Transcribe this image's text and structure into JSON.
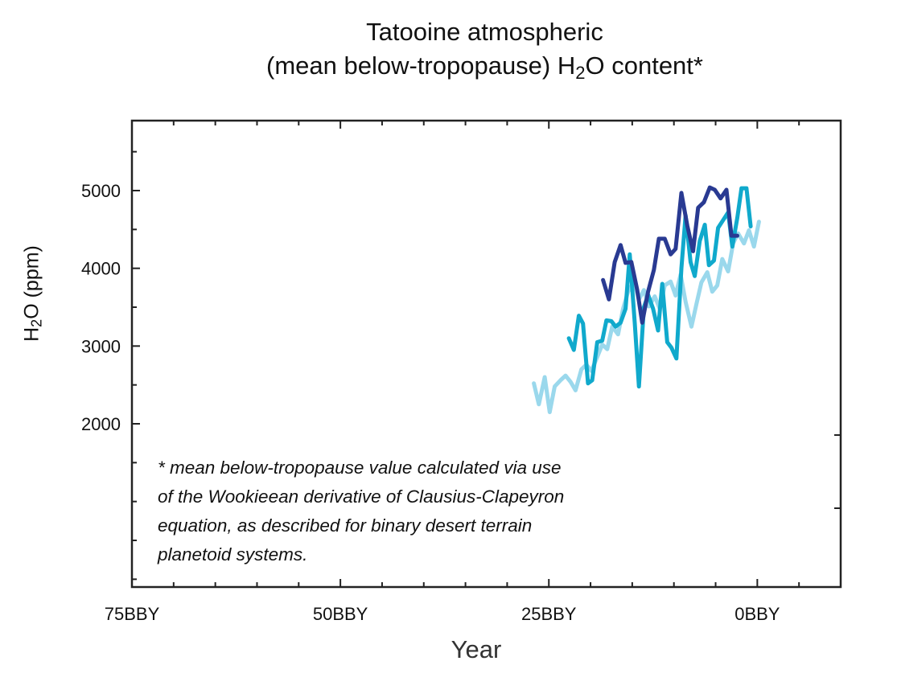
{
  "chart_data": {
    "type": "line",
    "title": {
      "line1": "Tatooine atmospheric",
      "line2_before": "(mean below-tropopause) H",
      "line2_sub": "2",
      "line2_after": "O content*"
    },
    "ylabel": {
      "before": "H",
      "sub": "2",
      "after": "O (ppm)"
    },
    "xlabel": "Year",
    "xlim": [
      -75,
      10
    ],
    "ylim": [
      -100,
      5900
    ],
    "x_ticks": [
      {
        "value": -75,
        "label": "75BBY"
      },
      {
        "value": -50,
        "label": "50BBY"
      },
      {
        "value": -25,
        "label": "25BBY"
      },
      {
        "value": 0,
        "label": "0BBY"
      }
    ],
    "y_ticks": [
      {
        "value": 2000,
        "label": "2000"
      },
      {
        "value": 3000,
        "label": "3000"
      },
      {
        "value": 4000,
        "label": "4000"
      },
      {
        "value": 5000,
        "label": "5000"
      }
    ],
    "grid": false,
    "annotation": [
      "* mean below-tropopause value calculated via use",
      "of the Wookieean derivative of Clausius-Clapeyron",
      "equation, as described for binary desert terrain",
      "planetoid systems."
    ],
    "series": [
      {
        "color": "#9ad8ec",
        "x": [
          -26.8,
          -26.2,
          -25.5,
          -24.9,
          -24.3,
          -23.6,
          -23.0,
          -22.4,
          -21.8,
          -21.1,
          -20.5,
          -19.9,
          -19.2,
          -18.6,
          -18.0,
          -17.4,
          -16.7,
          -16.1,
          -15.5,
          -14.8,
          -14.2,
          -13.6,
          -13.0,
          -12.3,
          -11.7,
          -11.1,
          -10.4,
          -9.8,
          -9.2,
          -8.6,
          -7.9,
          -7.3,
          -6.7,
          -6.0,
          -5.4,
          -4.8,
          -4.2,
          -3.5,
          -2.9,
          -2.3,
          -1.6,
          -1.0,
          -0.4,
          0.2
        ],
        "y": [
          2520,
          2250,
          2600,
          2150,
          2480,
          2560,
          2620,
          2540,
          2430,
          2700,
          2760,
          2680,
          2860,
          3020,
          2960,
          3250,
          3150,
          3480,
          3700,
          3830,
          3600,
          3720,
          3510,
          3640,
          3480,
          3780,
          3830,
          3650,
          3920,
          3570,
          3250,
          3540,
          3820,
          3950,
          3700,
          3780,
          4120,
          3960,
          4320,
          4450,
          4320,
          4490,
          4280,
          4600
        ]
      },
      {
        "color": "#10a9cc",
        "x": [
          -22.6,
          -22.0,
          -21.4,
          -20.9,
          -20.3,
          -19.8,
          -19.2,
          -18.6,
          -18.1,
          -17.5,
          -17.0,
          -16.4,
          -15.8,
          -15.3,
          -14.7,
          -14.2,
          -13.6,
          -13.1,
          -12.5,
          -11.9,
          -11.4,
          -10.8,
          -10.3,
          -9.7,
          -9.1,
          -8.6,
          -8.0,
          -7.5,
          -6.9,
          -6.3,
          -5.8,
          -5.2,
          -4.7,
          -4.1,
          -3.5,
          -3.0,
          -2.4,
          -1.9,
          -1.3,
          -0.8
        ],
        "y": [
          3100,
          2950,
          3390,
          3290,
          2520,
          2560,
          3050,
          3070,
          3330,
          3320,
          3250,
          3300,
          3480,
          4180,
          3300,
          2480,
          3500,
          3660,
          3480,
          3200,
          3800,
          3050,
          2980,
          2840,
          4000,
          4680,
          4080,
          3900,
          4350,
          4560,
          4040,
          4100,
          4520,
          4620,
          4720,
          4280,
          4650,
          5030,
          5030,
          4540
        ]
      },
      {
        "color": "#293a92",
        "x": [
          -18.5,
          -17.8,
          -17.1,
          -16.4,
          -15.8,
          -15.1,
          -14.4,
          -13.8,
          -13.1,
          -12.4,
          -11.8,
          -11.1,
          -10.4,
          -9.8,
          -9.1,
          -8.4,
          -7.7,
          -7.1,
          -6.4,
          -5.7,
          -5.1,
          -4.4,
          -3.7,
          -3.1,
          -2.4
        ],
        "y": [
          3850,
          3600,
          4080,
          4300,
          4070,
          4080,
          3720,
          3300,
          3700,
          3980,
          4380,
          4380,
          4180,
          4250,
          4970,
          4550,
          4220,
          4780,
          4850,
          5040,
          5010,
          4900,
          5010,
          4420,
          4420
        ]
      }
    ]
  }
}
